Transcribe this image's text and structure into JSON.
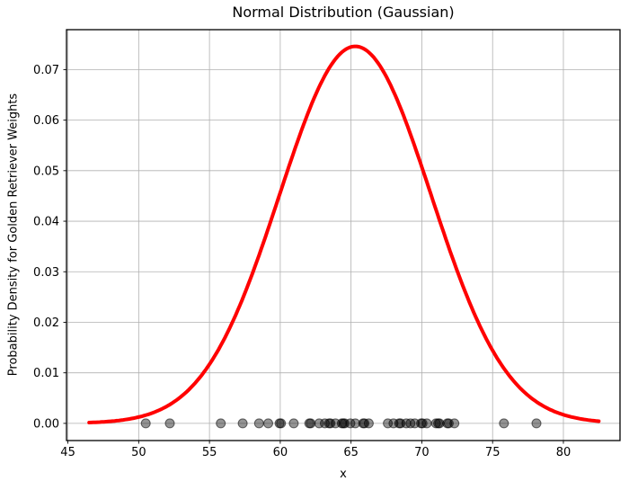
{
  "chart_data": {
    "type": "line+scatter",
    "title": "Normal Distribution (Gaussian)",
    "xlabel": "x",
    "ylabel": "Probability Density for Golden Retriever Weights",
    "xlim": [
      44.9,
      84.0
    ],
    "ylim": [
      -0.0034,
      0.0779
    ],
    "xticks": [
      45,
      50,
      55,
      60,
      65,
      70,
      75,
      80
    ],
    "xtick_labels": [
      "45",
      "50",
      "55",
      "60",
      "65",
      "70",
      "75",
      "80"
    ],
    "yticks": [
      0.0,
      0.01,
      0.02,
      0.03,
      0.04,
      0.05,
      0.06,
      0.07
    ],
    "ytick_labels": [
      "0.00",
      "0.01",
      "0.02",
      "0.03",
      "0.04",
      "0.05",
      "0.06",
      "0.07"
    ],
    "grid": true,
    "grid_color": "#b0b0b0",
    "spine_color": "#000000",
    "background_color": "#ffffff",
    "series": [
      {
        "name": "gaussian-pdf-curve",
        "type": "line",
        "color": "#ff0000",
        "linewidth": 4,
        "curve": {
          "shape": "gaussian",
          "mean": 65.3,
          "sigma": 5.35,
          "peak": 0.0746,
          "x_start": 46.5,
          "x_end": 82.5
        }
      },
      {
        "name": "sample-points",
        "type": "scatter",
        "color": "#000000",
        "alpha": 0.42,
        "edge_alpha": 0.55,
        "marker_radius": 5,
        "y": 0,
        "x": [
          50.5,
          52.2,
          55.8,
          57.35,
          58.5,
          59.15,
          59.95,
          60.05,
          60.95,
          62.05,
          62.15,
          62.75,
          63.15,
          63.45,
          63.55,
          63.9,
          64.35,
          64.45,
          64.55,
          64.95,
          65.3,
          65.85,
          65.95,
          66.25,
          67.6,
          68.0,
          68.4,
          68.5,
          68.9,
          69.2,
          69.5,
          69.95,
          70.05,
          70.35,
          71.0,
          71.15,
          71.25,
          71.8,
          71.9,
          72.3,
          75.8,
          78.1
        ]
      }
    ]
  }
}
